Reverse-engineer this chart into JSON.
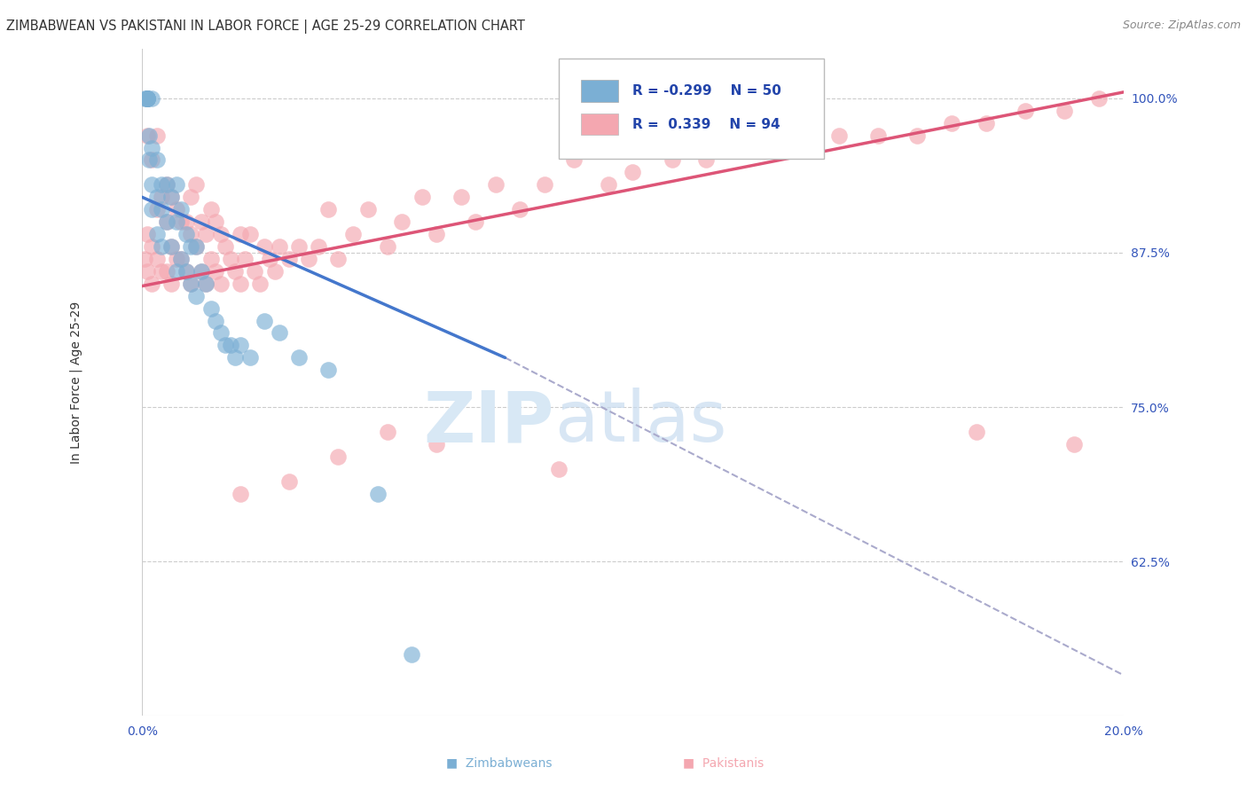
{
  "title": "ZIMBABWEAN VS PAKISTANI IN LABOR FORCE | AGE 25-29 CORRELATION CHART",
  "source": "Source: ZipAtlas.com",
  "ylabel": "In Labor Force | Age 25-29",
  "x_min": 0.0,
  "x_max": 0.2,
  "y_min": 0.5,
  "y_max": 1.04,
  "y_ticks": [
    0.625,
    0.75,
    0.875,
    1.0
  ],
  "y_tick_labels": [
    "62.5%",
    "75.0%",
    "87.5%",
    "100.0%"
  ],
  "x_ticks": [
    0.0,
    0.05,
    0.1,
    0.15,
    0.2
  ],
  "x_tick_labels": [
    "0.0%",
    "",
    "",
    "",
    "20.0%"
  ],
  "blue_color": "#7BAFD4",
  "pink_color": "#F4A7B0",
  "blue_edge_color": "#5590C0",
  "pink_edge_color": "#E07080",
  "blue_label": "Zimbabweans",
  "pink_label": "Pakistanis",
  "blue_line_color": "#4477CC",
  "pink_line_color": "#DD5577",
  "dashed_line_color": "#aaaacc",
  "blue_line_x": [
    0.0,
    0.074
  ],
  "blue_line_y": [
    0.92,
    0.79
  ],
  "dashed_line_x": [
    0.074,
    0.2
  ],
  "dashed_line_y": [
    0.79,
    0.533
  ],
  "pink_line_x": [
    0.0,
    0.2
  ],
  "pink_line_y": [
    0.848,
    1.005
  ],
  "blue_scatter_x": [
    0.0005,
    0.001,
    0.001,
    0.001,
    0.001,
    0.001,
    0.001,
    0.0015,
    0.0015,
    0.002,
    0.002,
    0.002,
    0.002,
    0.003,
    0.003,
    0.003,
    0.004,
    0.004,
    0.004,
    0.005,
    0.005,
    0.006,
    0.006,
    0.007,
    0.007,
    0.007,
    0.008,
    0.008,
    0.009,
    0.009,
    0.01,
    0.01,
    0.011,
    0.011,
    0.012,
    0.013,
    0.014,
    0.015,
    0.016,
    0.017,
    0.018,
    0.019,
    0.02,
    0.022,
    0.025,
    0.028,
    0.032,
    0.038,
    0.048,
    0.055
  ],
  "blue_scatter_y": [
    1.0,
    1.0,
    1.0,
    1.0,
    1.0,
    1.0,
    1.0,
    0.97,
    0.95,
    1.0,
    0.96,
    0.93,
    0.91,
    0.95,
    0.92,
    0.89,
    0.93,
    0.91,
    0.88,
    0.93,
    0.9,
    0.92,
    0.88,
    0.93,
    0.9,
    0.86,
    0.91,
    0.87,
    0.89,
    0.86,
    0.88,
    0.85,
    0.88,
    0.84,
    0.86,
    0.85,
    0.83,
    0.82,
    0.81,
    0.8,
    0.8,
    0.79,
    0.8,
    0.79,
    0.82,
    0.81,
    0.79,
    0.78,
    0.68,
    0.55
  ],
  "pink_scatter_x": [
    0.0005,
    0.001,
    0.001,
    0.001,
    0.001,
    0.002,
    0.002,
    0.002,
    0.003,
    0.003,
    0.003,
    0.004,
    0.004,
    0.005,
    0.005,
    0.005,
    0.006,
    0.006,
    0.006,
    0.007,
    0.007,
    0.008,
    0.008,
    0.009,
    0.009,
    0.01,
    0.01,
    0.01,
    0.011,
    0.011,
    0.012,
    0.012,
    0.013,
    0.013,
    0.014,
    0.014,
    0.015,
    0.015,
    0.016,
    0.016,
    0.017,
    0.018,
    0.019,
    0.02,
    0.02,
    0.021,
    0.022,
    0.023,
    0.024,
    0.025,
    0.026,
    0.027,
    0.028,
    0.03,
    0.032,
    0.034,
    0.036,
    0.038,
    0.04,
    0.043,
    0.046,
    0.05,
    0.053,
    0.057,
    0.06,
    0.065,
    0.068,
    0.072,
    0.077,
    0.082,
    0.088,
    0.095,
    0.1,
    0.108,
    0.115,
    0.12,
    0.128,
    0.135,
    0.142,
    0.15,
    0.158,
    0.165,
    0.172,
    0.18,
    0.188,
    0.195,
    0.17,
    0.19,
    0.085,
    0.05,
    0.06,
    0.04,
    0.03,
    0.02
  ],
  "pink_scatter_y": [
    0.87,
    1.0,
    0.97,
    0.89,
    0.86,
    0.95,
    0.88,
    0.85,
    0.97,
    0.91,
    0.87,
    0.92,
    0.86,
    0.93,
    0.9,
    0.86,
    0.92,
    0.88,
    0.85,
    0.91,
    0.87,
    0.9,
    0.87,
    0.9,
    0.86,
    0.92,
    0.89,
    0.85,
    0.93,
    0.88,
    0.9,
    0.86,
    0.89,
    0.85,
    0.91,
    0.87,
    0.9,
    0.86,
    0.89,
    0.85,
    0.88,
    0.87,
    0.86,
    0.89,
    0.85,
    0.87,
    0.89,
    0.86,
    0.85,
    0.88,
    0.87,
    0.86,
    0.88,
    0.87,
    0.88,
    0.87,
    0.88,
    0.91,
    0.87,
    0.89,
    0.91,
    0.88,
    0.9,
    0.92,
    0.89,
    0.92,
    0.9,
    0.93,
    0.91,
    0.93,
    0.95,
    0.93,
    0.94,
    0.95,
    0.95,
    0.96,
    0.96,
    0.96,
    0.97,
    0.97,
    0.97,
    0.98,
    0.98,
    0.99,
    0.99,
    1.0,
    0.73,
    0.72,
    0.7,
    0.73,
    0.72,
    0.71,
    0.69,
    0.68
  ],
  "marker_size": 180,
  "marker_alpha": 0.65,
  "grid_color": "#cccccc",
  "grid_style": "--",
  "tick_color": "#3355BB",
  "title_fontsize": 10.5,
  "source_fontsize": 9,
  "ylabel_fontsize": 10,
  "tick_fontsize": 10,
  "legend_fontsize": 11
}
